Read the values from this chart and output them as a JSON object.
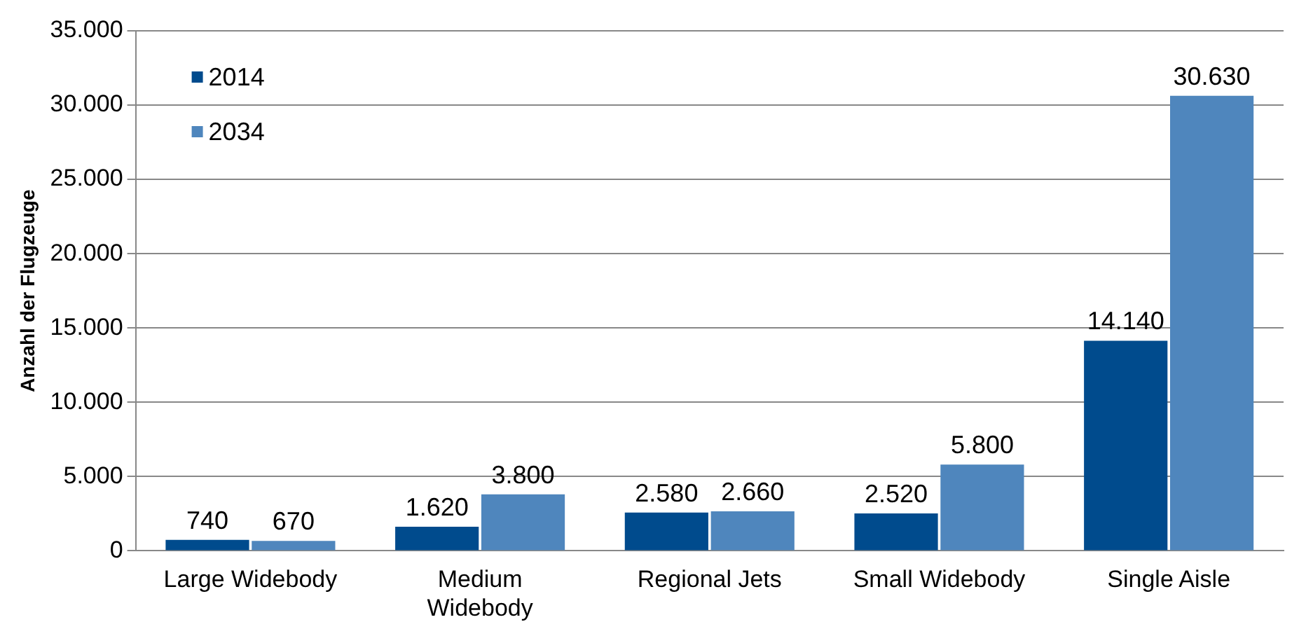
{
  "chart_data": {
    "type": "bar",
    "ylabel": "Anzahl der Flugzeuge",
    "categories": [
      "Large Widebody",
      "Medium\nWidebody",
      "Regional Jets",
      "Small Widebody",
      "Single Aisle"
    ],
    "series": [
      {
        "name": "2014",
        "color": "#004b8d",
        "values": [
          740,
          1620,
          2580,
          2520,
          14140
        ],
        "value_labels": [
          "740",
          "1.620",
          "2.580",
          "2.520",
          "14.140"
        ]
      },
      {
        "name": "2034",
        "color": "#4f86bd",
        "values": [
          670,
          3800,
          2660,
          5800,
          30630
        ],
        "value_labels": [
          "670",
          "3.800",
          "2.660",
          "5.800",
          "30.630"
        ]
      }
    ],
    "ylim": [
      0,
      35000
    ],
    "yticks": [
      0,
      {
        "value": 5000,
        "label": "5.000"
      },
      {
        "value": 10000,
        "label": "10.000"
      },
      {
        "value": 15000,
        "label": "15.000"
      },
      {
        "value": 20000,
        "label": "20.000"
      },
      {
        "value": 25000,
        "label": "25.000"
      },
      {
        "value": 30000,
        "label": "30.000"
      },
      {
        "value": 35000,
        "label": "35.000"
      }
    ],
    "grid": "y",
    "legend": "top left"
  }
}
